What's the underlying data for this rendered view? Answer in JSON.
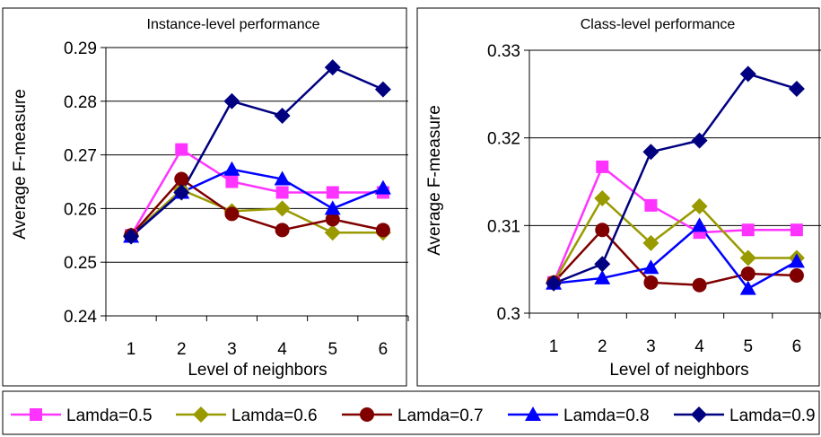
{
  "chart_data": [
    {
      "type": "line",
      "title": "Instance-level performance",
      "xlabel": "Level of neighbors",
      "ylabel": "Average F-measure",
      "categories": [
        "1",
        "2",
        "3",
        "4",
        "5",
        "6"
      ],
      "ylim": [
        0.24,
        0.29
      ],
      "yticks": [
        "0.24",
        "0.25",
        "0.26",
        "0.27",
        "0.28",
        "0.29"
      ],
      "grid": true,
      "series": [
        {
          "name": "Lamda=0.5",
          "values": [
            0.255,
            0.271,
            0.265,
            0.263,
            0.263,
            0.263
          ]
        },
        {
          "name": "Lamda=0.6",
          "values": [
            0.255,
            0.2635,
            0.2595,
            0.26,
            0.2555,
            0.2555
          ]
        },
        {
          "name": "Lamda=0.7",
          "values": [
            0.255,
            0.2655,
            0.259,
            0.256,
            0.258,
            0.256
          ]
        },
        {
          "name": "Lamda=0.8",
          "values": [
            0.2548,
            0.263,
            0.2673,
            0.2655,
            0.26,
            0.2638
          ]
        },
        {
          "name": "Lamda=0.9",
          "values": [
            0.2548,
            0.263,
            0.28,
            0.2773,
            0.2863,
            0.2822
          ]
        }
      ]
    },
    {
      "type": "line",
      "title": "Class-level performance",
      "xlabel": "Level of neighbors",
      "ylabel": "Average F-measure",
      "categories": [
        "1",
        "2",
        "3",
        "4",
        "5",
        "6"
      ],
      "ylim": [
        0.3,
        0.33
      ],
      "yticks": [
        "0.3",
        "0.31",
        "0.32",
        "0.33"
      ],
      "grid": true,
      "series": [
        {
          "name": "Lamda=0.5",
          "values": [
            0.3035,
            0.3167,
            0.3123,
            0.3092,
            0.3095,
            0.3095
          ]
        },
        {
          "name": "Lamda=0.6",
          "values": [
            0.3035,
            0.3131,
            0.308,
            0.3122,
            0.3063,
            0.3063
          ]
        },
        {
          "name": "Lamda=0.7",
          "values": [
            0.3035,
            0.3095,
            0.3035,
            0.3032,
            0.3045,
            0.3043
          ]
        },
        {
          "name": "Lamda=0.8",
          "values": [
            0.3034,
            0.304,
            0.3052,
            0.31,
            0.3028,
            0.3059
          ]
        },
        {
          "name": "Lamda=0.9",
          "values": [
            0.3034,
            0.3056,
            0.3184,
            0.3197,
            0.3273,
            0.3256
          ]
        }
      ]
    }
  ],
  "legend": {
    "placement": "bottom",
    "items": [
      {
        "label": "Lamda=0.5",
        "color": "#ff33ff",
        "marker": "square"
      },
      {
        "label": "Lamda=0.6",
        "color": "#999900",
        "marker": "diamond"
      },
      {
        "label": "Lamda=0.7",
        "color": "#800000",
        "marker": "circle"
      },
      {
        "label": "Lamda=0.8",
        "color": "#0000ff",
        "marker": "triangle"
      },
      {
        "label": "Lamda=0.9",
        "color": "#000080",
        "marker": "diamond"
      }
    ]
  }
}
